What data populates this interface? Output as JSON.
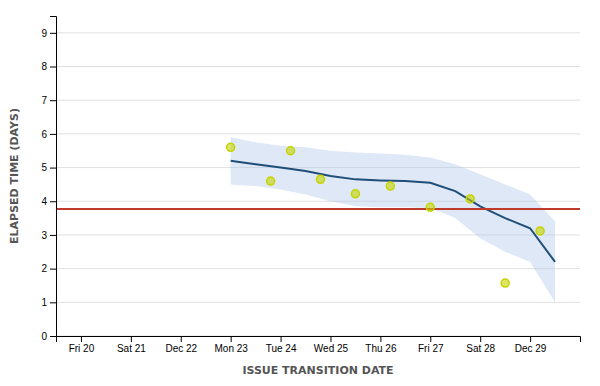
{
  "chart_data": {
    "type": "line",
    "xlabel": "ISSUE TRANSITION DATE",
    "ylabel": "ELAPSED TIME (DAYS)",
    "xlim": [
      -0.5,
      10.0
    ],
    "xticks": [
      {
        "value": 0,
        "label": "Fri 20"
      },
      {
        "value": 1,
        "label": "Sat 21"
      },
      {
        "value": 2,
        "label": "Dec 22"
      },
      {
        "value": 3,
        "label": "Mon 23"
      },
      {
        "value": 4,
        "label": "Tue 24"
      },
      {
        "value": 5,
        "label": "Wed 25"
      },
      {
        "value": 6,
        "label": "Thu 26"
      },
      {
        "value": 7,
        "label": "Fri 27"
      },
      {
        "value": 8,
        "label": "Sat 28"
      },
      {
        "value": 9,
        "label": "Dec 29"
      }
    ],
    "ylim": [
      0,
      9.5
    ],
    "yticks": [
      0,
      1,
      2,
      3,
      4,
      5,
      6,
      7,
      8,
      9
    ],
    "grid": true,
    "series": [
      {
        "type": "band",
        "color": "#aec6e8",
        "x": [
          3,
          3.1,
          3.5,
          4,
          4.5,
          5,
          5.5,
          6,
          6.5,
          7,
          7.5,
          8,
          8.5,
          9,
          9.5
        ],
        "lower": [
          4.5,
          4.48,
          4.45,
          4.35,
          4.2,
          4.0,
          3.85,
          3.82,
          3.82,
          3.8,
          3.5,
          2.9,
          2.5,
          2.2,
          1.0
        ],
        "upper": [
          5.9,
          5.87,
          5.75,
          5.65,
          5.6,
          5.5,
          5.45,
          5.42,
          5.38,
          5.3,
          5.1,
          4.8,
          4.5,
          4.2,
          3.4
        ]
      },
      {
        "type": "line",
        "color": "#1f4e79",
        "x": [
          3,
          3.1,
          3.5,
          4,
          4.5,
          5,
          5.5,
          6,
          6.5,
          7,
          7.5,
          8,
          8.5,
          9,
          9.5
        ],
        "values": [
          5.2,
          5.18,
          5.1,
          5.0,
          4.9,
          4.75,
          4.65,
          4.62,
          4.6,
          4.55,
          4.3,
          3.85,
          3.5,
          3.2,
          2.2
        ]
      },
      {
        "type": "hline",
        "color": "#c0392b",
        "y": 3.77
      },
      {
        "type": "scatter",
        "color": "#c5d400",
        "x": [
          3.0,
          3.8,
          4.2,
          4.8,
          5.5,
          6.2,
          7.0,
          7.8,
          8.5,
          9.2
        ],
        "values": [
          5.6,
          4.6,
          5.5,
          4.65,
          4.22,
          4.45,
          3.82,
          4.07,
          1.57,
          3.12
        ]
      }
    ]
  }
}
